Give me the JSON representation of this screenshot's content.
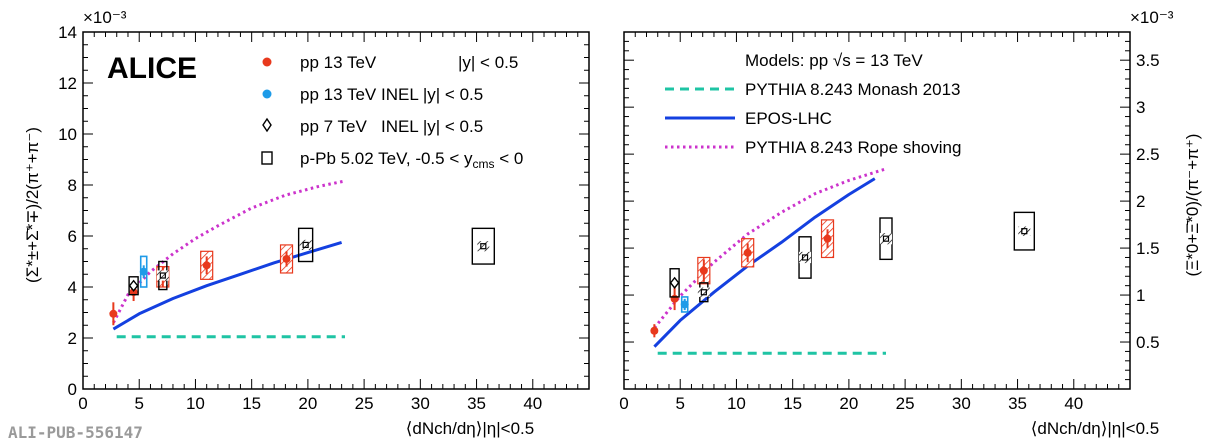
{
  "brand": "ALICE",
  "pub_id": "ALI-PUB-556147",
  "colors": {
    "pp13": "#e8391d",
    "pp13inel": "#1e9be8",
    "pp7": "#000000",
    "ppb": "#000000",
    "pythia_monash": "#1fc4a4",
    "epos": "#1440e0",
    "rope": "#cc33cc"
  },
  "chart_data": [
    {
      "type": "scatter",
      "panel": "left",
      "ylabel": "(Σ*±+Σ̄*∓)/2(π⁺+π⁻)",
      "xlabel": "⟨dNch/dη⟩|η|<0.5",
      "multiplier": "×10⁻³",
      "xlim": [
        0,
        45
      ],
      "ylim": [
        0,
        14
      ],
      "x_ticks": [
        "0",
        "5",
        "10",
        "15",
        "20",
        "25",
        "30",
        "35",
        "40"
      ],
      "y_ticks": [
        "0",
        "2",
        "4",
        "6",
        "8",
        "10",
        "12",
        "14"
      ],
      "legend": [
        {
          "label": "pp 13 TeV",
          "extra": "|y| < 0.5",
          "marker": "circle-red"
        },
        {
          "label": "pp 13 TeV INEL |y| < 0.5",
          "marker": "circle-blue"
        },
        {
          "label": "pp 7 TeV   INEL |y| < 0.5",
          "marker": "diamond"
        },
        {
          "label": "p-Pb 5.02 TeV, -0.5 < y",
          "sub": "cms",
          "tail": " < 0",
          "marker": "square"
        }
      ],
      "series": [
        {
          "name": "pp 13 TeV",
          "points": [
            {
              "x": 2.7,
              "y": 2.95,
              "stat": 0.45,
              "sys": 0.35
            },
            {
              "x": 4.5,
              "y": 3.8,
              "stat": 0.35,
              "sys": 0.3
            },
            {
              "x": 7.1,
              "y": 4.4,
              "stat": 0.4,
              "sys": 0.4
            },
            {
              "x": 11.0,
              "y": 4.85,
              "stat": 0.35,
              "sys": 0.55
            },
            {
              "x": 18.1,
              "y": 5.1,
              "stat": 0.3,
              "sys": 0.55
            }
          ]
        },
        {
          "name": "pp 13 TeV INEL",
          "points": [
            {
              "x": 5.4,
              "y": 4.6,
              "stat": 0.25,
              "sys": 0.6
            }
          ]
        },
        {
          "name": "pp 7 TeV INEL",
          "points": [
            {
              "x": 4.5,
              "y": 4.05,
              "stat": 0.2,
              "sys": 0.35
            }
          ]
        },
        {
          "name": "p-Pb 5.02 TeV",
          "points": [
            {
              "x": 7.1,
              "y": 4.45,
              "stat": 0.2,
              "sys": 0.55
            },
            {
              "x": 19.8,
              "y": 5.65,
              "stat": 0.2,
              "sys": 0.65
            },
            {
              "x": 35.6,
              "y": 5.6,
              "stat": 0.2,
              "sys": 0.7
            }
          ]
        }
      ],
      "models": [
        {
          "name": "PYTHIA 8.243 Monash 2013",
          "x": [
            3.0,
            23.3
          ],
          "y": [
            2.05,
            2.05
          ]
        },
        {
          "name": "EPOS-LHC",
          "x": [
            2.7,
            5,
            8,
            11,
            14,
            17,
            20,
            23
          ],
          "y": [
            2.35,
            2.95,
            3.55,
            4.05,
            4.5,
            4.95,
            5.35,
            5.75
          ]
        },
        {
          "name": "PYTHIA 8.243 Rope shoving",
          "x": [
            2.7,
            4,
            6,
            8,
            10,
            12,
            15,
            18,
            21,
            23.2
          ],
          "y": [
            2.6,
            3.7,
            4.6,
            5.3,
            5.9,
            6.4,
            7.1,
            7.6,
            7.95,
            8.15
          ]
        }
      ]
    },
    {
      "type": "scatter",
      "panel": "right",
      "ylabel": "(Ξ*0+Ξ̄*0)/(π⁻+π⁺)",
      "xlabel": "⟨dNch/dη⟩|η|<0.5",
      "multiplier": "×10⁻³",
      "xlim": [
        0,
        45
      ],
      "ylim": [
        0,
        3.8
      ],
      "x_ticks": [
        "0",
        "5",
        "10",
        "15",
        "20",
        "25",
        "30",
        "35",
        "40"
      ],
      "y_ticks": [
        "0.5",
        "1",
        "1.5",
        "2",
        "2.5",
        "3",
        "3.5"
      ],
      "legend_title": "Models: pp √s = 13 TeV",
      "legend": [
        {
          "label": "PYTHIA 8.243 Monash 2013",
          "marker": "dashed-teal"
        },
        {
          "label": "EPOS-LHC",
          "marker": "solid-blue"
        },
        {
          "label": "PYTHIA 8.243 Rope shoving",
          "marker": "dotted-magenta"
        }
      ],
      "series": [
        {
          "name": "pp 13 TeV",
          "points": [
            {
              "x": 2.7,
              "y": 0.62,
              "stat": 0.07,
              "sys": 0.06
            },
            {
              "x": 4.5,
              "y": 0.96,
              "stat": 0.12,
              "sys": 0.1
            },
            {
              "x": 7.1,
              "y": 1.26,
              "stat": 0.12,
              "sys": 0.14
            },
            {
              "x": 11.0,
              "y": 1.45,
              "stat": 0.1,
              "sys": 0.15
            },
            {
              "x": 18.1,
              "y": 1.6,
              "stat": 0.1,
              "sys": 0.2
            }
          ]
        },
        {
          "name": "pp 13 TeV INEL",
          "points": [
            {
              "x": 5.4,
              "y": 0.9,
              "stat": 0.06,
              "sys": 0.08
            }
          ]
        },
        {
          "name": "pp 7 TeV INEL",
          "points": [
            {
              "x": 4.5,
              "y": 1.13,
              "stat": 0.08,
              "sys": 0.15
            }
          ]
        },
        {
          "name": "p-Pb 5.02 TeV",
          "points": [
            {
              "x": 7.1,
              "y": 1.03,
              "stat": 0.05,
              "sys": 0.1
            },
            {
              "x": 16.1,
              "y": 1.4,
              "stat": 0.06,
              "sys": 0.22
            },
            {
              "x": 23.3,
              "y": 1.6,
              "stat": 0.06,
              "sys": 0.22
            },
            {
              "x": 35.6,
              "y": 1.68,
              "stat": 0.05,
              "sys": 0.2
            }
          ]
        }
      ],
      "models": [
        {
          "name": "PYTHIA 8.243 Monash 2013",
          "x": [
            3.0,
            23.3
          ],
          "y": [
            0.38,
            0.38
          ]
        },
        {
          "name": "EPOS-LHC",
          "x": [
            2.7,
            5,
            8,
            11,
            14,
            17,
            20,
            22.3
          ],
          "y": [
            0.45,
            0.73,
            1.03,
            1.31,
            1.56,
            1.83,
            2.07,
            2.24
          ]
        },
        {
          "name": "PYTHIA 8.243 Rope shoving",
          "x": [
            2.7,
            5,
            8,
            11,
            14,
            17,
            20,
            23.2
          ],
          "y": [
            0.65,
            0.99,
            1.35,
            1.65,
            1.88,
            2.08,
            2.22,
            2.34
          ]
        }
      ]
    }
  ]
}
